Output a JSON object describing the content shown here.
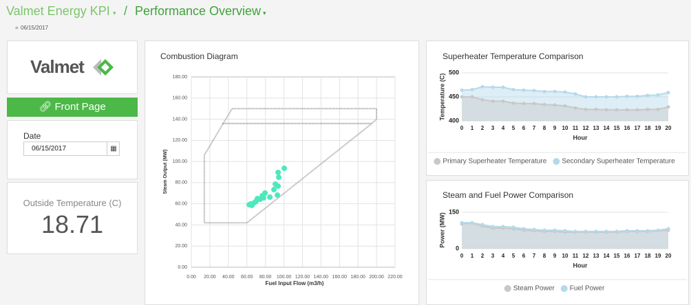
{
  "header": {
    "app": "Valmet Energy KPI",
    "separator": "/",
    "page": "Performance Overview",
    "date": "06/15/2017"
  },
  "sidebar": {
    "logo": "Valmet",
    "button": "Front Page",
    "date_label": "Date",
    "date_value": "06/15/2017",
    "temp_label": "Outside Temperature (C)",
    "temp_value": 18.71
  },
  "charts": [
    {
      "type": "scatter",
      "title": "Combustion Diagram",
      "x_label": "Fuel Input Flow (m3/h)",
      "y_label": "Steam Output (MW)",
      "grid": true,
      "xlim": [
        0,
        220
      ],
      "xticks": [
        {
          "value": 0,
          "label": "0.00"
        },
        {
          "value": 20,
          "label": "20.00"
        },
        {
          "value": 40,
          "label": "40.00"
        },
        {
          "value": 60,
          "label": "60.00"
        },
        {
          "value": 80,
          "label": "80.00"
        },
        {
          "value": 100,
          "label": "100.00"
        },
        {
          "value": 120,
          "label": "120.00"
        },
        {
          "value": 140,
          "label": "140.00"
        },
        {
          "value": 160,
          "label": "160.00"
        },
        {
          "value": 180,
          "label": "180.00"
        },
        {
          "value": 200,
          "label": "200.00"
        },
        {
          "value": 220,
          "label": "220.00"
        }
      ],
      "ylim": [
        0,
        180
      ],
      "yticks": [
        {
          "value": 0,
          "label": "0.00"
        },
        {
          "value": 20,
          "label": "20.00"
        },
        {
          "value": 40,
          "label": "40.00"
        },
        {
          "value": 60,
          "label": "60.00"
        },
        {
          "value": 80,
          "label": "80.00"
        },
        {
          "value": 100,
          "label": "100.00"
        },
        {
          "value": 120,
          "label": "120.00"
        },
        {
          "value": 140,
          "label": "140.00"
        },
        {
          "value": 160,
          "label": "160.00"
        },
        {
          "value": 180,
          "label": "180.00"
        }
      ],
      "series": [
        {
          "kind": "line",
          "color": "#9a9a9a",
          "x": [
            60,
            14,
            14,
            44,
            200,
            200,
            195,
            33,
            195,
            60
          ],
          "y": [
            42,
            42,
            106,
            150,
            150,
            140,
            136,
            136,
            136,
            42
          ]
        },
        {
          "kind": "scatter",
          "color": "#4ee8bd",
          "x": [
            100.4,
            93.7,
            94.4,
            90.7,
            93.7,
            89.2,
            92.9,
            84.8,
            79.6,
            76.6,
            74.3,
            69.9,
            66.9,
            63.9,
            65.4,
            69.1,
            78.1,
            71.4,
            62.5
          ],
          "y": [
            93.6,
            89.7,
            85.1,
            78.6,
            76.7,
            73.4,
            68.2,
            66.3,
            70.2,
            67.6,
            64.3,
            62.4,
            60.4,
            59.8,
            58.5,
            61.7,
            65.6,
            65,
            59.1
          ]
        }
      ]
    },
    {
      "type": "area",
      "title": "Superheater Temperature Comparison",
      "x_label": "Hour",
      "y_label": "Temperature (C)",
      "grid": true,
      "legend": "bottom",
      "categories": [
        "0",
        "1",
        "2",
        "3",
        "4",
        "5",
        "6",
        "7",
        "8",
        "9",
        "10",
        "11",
        "12",
        "13",
        "14",
        "15",
        "16",
        "17",
        "18",
        "19",
        "20"
      ],
      "ylim": [
        400,
        500
      ],
      "yticks": [
        400,
        450,
        500
      ],
      "series": [
        {
          "name": "Primary Superheater Temperature",
          "color": "#c8c8c8",
          "values": [
            450,
            450,
            444,
            441,
            441,
            437,
            436,
            436,
            434,
            433,
            431,
            427,
            424,
            424,
            423,
            423,
            423,
            423,
            424,
            424,
            429
          ]
        },
        {
          "name": "Secondary Superheater Temperature",
          "color": "#b5d9ea",
          "values": [
            464,
            465,
            471,
            470,
            470,
            465,
            464,
            463,
            461,
            461,
            460,
            456,
            450,
            450,
            450,
            450,
            451,
            451,
            453,
            454,
            459
          ]
        }
      ]
    },
    {
      "type": "area",
      "title": "Steam and Fuel Power Comparison",
      "x_label": "Hour",
      "y_label": "Power (MW)",
      "grid": true,
      "legend": "bottom",
      "categories": [
        "0",
        "1",
        "2",
        "3",
        "4",
        "5",
        "6",
        "7",
        "8",
        "9",
        "10",
        "11",
        "12",
        "13",
        "14",
        "15",
        "16",
        "17",
        "18",
        "19",
        "20"
      ],
      "ylim": [
        0,
        150
      ],
      "yticks": [
        0,
        150
      ],
      "series": [
        {
          "name": "Steam Power",
          "color": "#c8c8c8",
          "values": [
            102,
            105,
            93,
            85,
            85,
            82,
            76,
            74,
            71,
            71,
            68,
            68,
            68,
            68,
            68,
            68,
            71,
            71,
            71,
            74,
            76
          ]
        },
        {
          "name": "Fuel Power",
          "color": "#b5d9ea",
          "values": [
            107,
            107,
            99,
            91,
            91,
            88,
            82,
            79,
            76,
            76,
            74,
            71,
            71,
            71,
            71,
            71,
            74,
            74,
            74,
            76,
            82
          ]
        }
      ]
    }
  ]
}
